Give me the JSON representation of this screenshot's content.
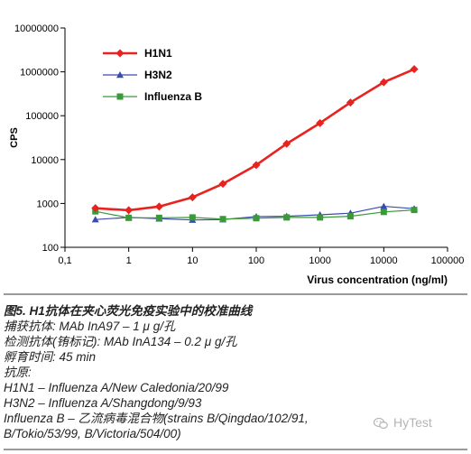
{
  "chart_data": {
    "type": "line",
    "x_scale": "log",
    "y_scale": "log",
    "xlim": [
      0.1,
      100000
    ],
    "ylim": [
      100,
      10000000
    ],
    "x_ticks": [
      0.1,
      1,
      10,
      100,
      1000,
      10000,
      100000
    ],
    "x_tick_labels": [
      "0,1",
      "1",
      "10",
      "100",
      "1000",
      "10000",
      "100000"
    ],
    "y_ticks": [
      100,
      1000,
      10000,
      100000,
      1000000,
      10000000
    ],
    "y_tick_labels": [
      "100",
      "1000",
      "10000",
      "100000",
      "1000000",
      "10000000"
    ],
    "xlabel": "Virus concentration (ng/ml)",
    "ylabel": "CPS",
    "grid": false,
    "legend_position": "top-left",
    "series": [
      {
        "name": "H1N1",
        "color": "#e8221e",
        "marker": "diamond",
        "x": [
          0.3,
          1,
          3,
          10,
          30,
          100,
          300,
          1000,
          3000,
          10000,
          30000
        ],
        "y": [
          780,
          700,
          850,
          1380,
          2800,
          7500,
          23000,
          68000,
          200000,
          580000,
          1150000
        ]
      },
      {
        "name": "H3N2",
        "color": "#3a4bb0",
        "marker": "triangle",
        "x": [
          0.3,
          1,
          3,
          10,
          30,
          100,
          300,
          1000,
          3000,
          10000,
          30000
        ],
        "y": [
          430,
          480,
          450,
          420,
          430,
          500,
          510,
          550,
          600,
          860,
          760
        ]
      },
      {
        "name": "Influenza B",
        "color": "#3a9a3a",
        "marker": "square",
        "x": [
          0.3,
          1,
          3,
          10,
          30,
          100,
          300,
          1000,
          3000,
          10000,
          30000
        ],
        "y": [
          660,
          470,
          470,
          480,
          440,
          460,
          480,
          480,
          510,
          640,
          710
        ]
      }
    ]
  },
  "caption": {
    "title": "图5. H1抗体在夹心荧光免疫实验中的校准曲线",
    "lines": [
      "捕获抗体: MAb InA97 – 1 μ g/孔",
      "检测抗体(铕标记): MAb InA134 – 0.2 μ g/孔",
      "孵育时间: 45 min",
      "抗原:",
      "H1N1 – Influenza A/New Caledonia/20/99",
      "H3N2 – Influenza A/Shangdong/9/93",
      "Influenza B – 乙流病毒混合物(strains B/Qingdao/102/91,",
      "B/Tokio/53/99, B/Victoria/504/00)"
    ]
  },
  "watermark": {
    "text": "HyTest",
    "icon": "wechat-icon"
  }
}
